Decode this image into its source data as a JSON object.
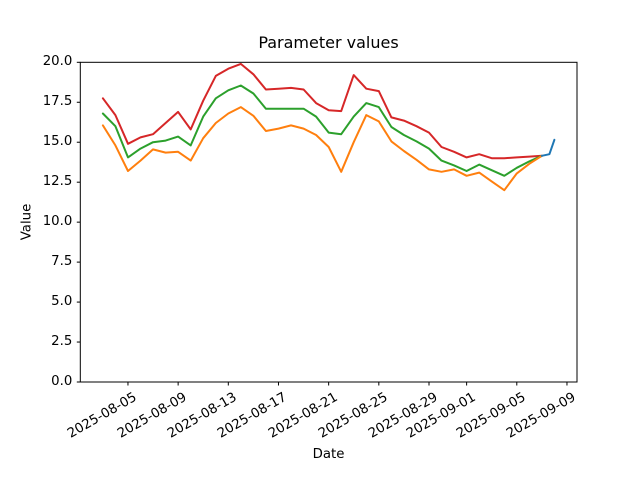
{
  "chart_data": {
    "type": "line",
    "title": "Parameter values",
    "xlabel": "Date",
    "ylabel": "Value",
    "ylim": [
      0,
      20
    ],
    "grid": false,
    "legend": "none",
    "x_dates": [
      "2025-08-03",
      "2025-08-04",
      "2025-08-05",
      "2025-08-06",
      "2025-08-07",
      "2025-08-08",
      "2025-08-09",
      "2025-08-10",
      "2025-08-11",
      "2025-08-12",
      "2025-08-13",
      "2025-08-14",
      "2025-08-15",
      "2025-08-16",
      "2025-08-17",
      "2025-08-18",
      "2025-08-19",
      "2025-08-20",
      "2025-08-21",
      "2025-08-22",
      "2025-08-23",
      "2025-08-24",
      "2025-08-25",
      "2025-08-26",
      "2025-08-27",
      "2025-08-28",
      "2025-08-29",
      "2025-08-30",
      "2025-08-31",
      "2025-09-01",
      "2025-09-02",
      "2025-09-03",
      "2025-09-04",
      "2025-09-05",
      "2025-09-06",
      "2025-09-07"
    ],
    "series": [
      {
        "name": "red",
        "color": "#d62728",
        "values": [
          17.75,
          16.7,
          14.9,
          15.3,
          15.5,
          16.2,
          16.9,
          15.8,
          17.6,
          19.15,
          19.6,
          19.9,
          19.25,
          18.3,
          18.35,
          18.4,
          18.3,
          17.45,
          17.0,
          16.95,
          19.2,
          18.35,
          18.2,
          16.55,
          16.35,
          16.0,
          15.6,
          14.7,
          14.4,
          14.05,
          14.25,
          14.0,
          14.0,
          14.05,
          14.1,
          14.15
        ]
      },
      {
        "name": "green",
        "color": "#2ca02c",
        "values": [
          16.8,
          16.0,
          14.05,
          14.6,
          15.0,
          15.1,
          15.35,
          14.8,
          16.6,
          17.75,
          18.25,
          18.55,
          18.05,
          17.1,
          17.1,
          17.1,
          17.1,
          16.6,
          15.6,
          15.5,
          16.6,
          17.45,
          17.2,
          15.95,
          15.45,
          15.05,
          14.6,
          13.85,
          13.55,
          13.2,
          13.6,
          13.25,
          12.9,
          13.4,
          13.8,
          14.15
        ]
      },
      {
        "name": "orange",
        "color": "#ff7f0e",
        "values": [
          16.05,
          14.8,
          13.2,
          13.85,
          14.55,
          14.35,
          14.4,
          13.85,
          15.25,
          16.2,
          16.8,
          17.2,
          16.65,
          15.7,
          15.85,
          16.05,
          15.85,
          15.45,
          14.7,
          13.15,
          15.0,
          16.7,
          16.3,
          15.05,
          14.45,
          13.9,
          13.3,
          13.15,
          13.3,
          12.9,
          13.1,
          12.55,
          12.0,
          13.05,
          13.65,
          14.15
        ]
      },
      {
        "name": "blue",
        "color": "#1f77b4",
        "x_index": [
          35,
          35.6,
          36
        ],
        "values": [
          14.15,
          14.25,
          15.15
        ]
      }
    ],
    "xticks": [
      {
        "label": "2025-08-05",
        "index": 2
      },
      {
        "label": "2025-08-09",
        "index": 6
      },
      {
        "label": "2025-08-13",
        "index": 10
      },
      {
        "label": "2025-08-17",
        "index": 14
      },
      {
        "label": "2025-08-21",
        "index": 18
      },
      {
        "label": "2025-08-25",
        "index": 22
      },
      {
        "label": "2025-08-29",
        "index": 26
      },
      {
        "label": "2025-09-01",
        "index": 29
      },
      {
        "label": "2025-09-05",
        "index": 33
      },
      {
        "label": "2025-09-09",
        "index": 37
      }
    ],
    "yticks": [
      "0.0",
      "2.5",
      "5.0",
      "7.5",
      "10.0",
      "12.5",
      "15.0",
      "17.5",
      "20.0"
    ]
  }
}
